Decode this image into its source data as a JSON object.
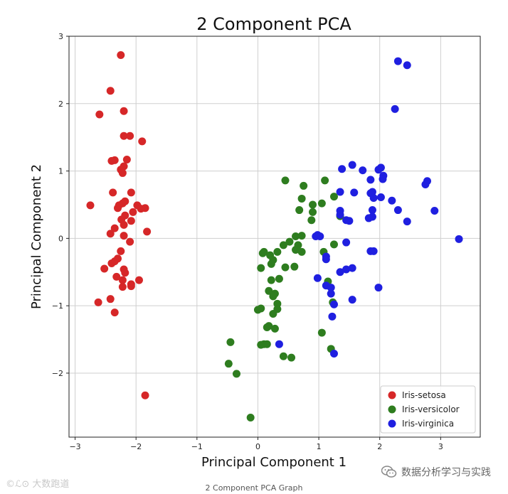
{
  "chart_data": {
    "type": "scatter",
    "title": "2 Component PCA",
    "xlabel": "Principal Component 1",
    "ylabel": "Principal Component 2",
    "xlim": [
      -3.1,
      3.65
    ],
    "ylim": [
      -2.95,
      3.0
    ],
    "xticks": [
      -3,
      -2,
      -1,
      0,
      1,
      2,
      3
    ],
    "xtick_labels": [
      "−3",
      "−2",
      "−1",
      "0",
      "1",
      "2",
      "3"
    ],
    "yticks": [
      -2,
      -1,
      0,
      1,
      2,
      3
    ],
    "ytick_labels": [
      "−2",
      "−1",
      "0",
      "1",
      "2",
      "3"
    ],
    "grid": true,
    "legend_position": "bottom-right",
    "series": [
      {
        "name": "Iris-setosa",
        "color": "#d62728",
        "points": [
          [
            -2.25,
            2.72
          ],
          [
            -2.42,
            2.19
          ],
          [
            -2.6,
            1.84
          ],
          [
            -2.2,
            1.89
          ],
          [
            -2.2,
            1.52
          ],
          [
            -2.1,
            1.52
          ],
          [
            -1.9,
            1.44
          ],
          [
            -2.35,
            1.16
          ],
          [
            -2.4,
            1.15
          ],
          [
            -2.15,
            1.17
          ],
          [
            -2.2,
            1.07
          ],
          [
            -2.25,
            1.02
          ],
          [
            -2.22,
            0.97
          ],
          [
            -2.38,
            0.68
          ],
          [
            -2.08,
            0.68
          ],
          [
            -2.18,
            0.55
          ],
          [
            -2.22,
            0.52
          ],
          [
            -2.28,
            0.49
          ],
          [
            -2.3,
            0.45
          ],
          [
            -1.98,
            0.49
          ],
          [
            -1.92,
            0.44
          ],
          [
            -1.85,
            0.45
          ],
          [
            -2.75,
            0.49
          ],
          [
            -2.05,
            0.39
          ],
          [
            -2.18,
            0.34
          ],
          [
            -2.24,
            0.28
          ],
          [
            -2.35,
            0.15
          ],
          [
            -2.08,
            0.26
          ],
          [
            -2.2,
            0.2
          ],
          [
            -1.82,
            0.1
          ],
          [
            -2.42,
            0.07
          ],
          [
            -2.2,
            0.04
          ],
          [
            -2.1,
            -0.05
          ],
          [
            -2.25,
            -0.19
          ],
          [
            -2.3,
            -0.3
          ],
          [
            -2.35,
            -0.34
          ],
          [
            -2.4,
            -0.37
          ],
          [
            -2.52,
            -0.45
          ],
          [
            -2.2,
            -0.46
          ],
          [
            -2.18,
            -0.51
          ],
          [
            -2.32,
            -0.57
          ],
          [
            -1.95,
            -0.62
          ],
          [
            -2.22,
            -0.62
          ],
          [
            -2.08,
            -0.68
          ],
          [
            -2.08,
            -0.71
          ],
          [
            -2.22,
            -0.72
          ],
          [
            -2.42,
            -0.9
          ],
          [
            -2.62,
            -0.95
          ],
          [
            -2.35,
            -1.1
          ],
          [
            -1.85,
            -2.33
          ]
        ]
      },
      {
        "name": "Iris-versicolor",
        "color": "#2e7d1f",
        "points": [
          [
            0.45,
            0.86
          ],
          [
            1.1,
            0.86
          ],
          [
            0.75,
            0.78
          ],
          [
            1.25,
            0.62
          ],
          [
            0.72,
            0.59
          ],
          [
            0.9,
            0.5
          ],
          [
            1.05,
            0.52
          ],
          [
            0.68,
            0.42
          ],
          [
            0.9,
            0.39
          ],
          [
            1.35,
            0.33
          ],
          [
            0.88,
            0.27
          ],
          [
            0.72,
            0.04
          ],
          [
            0.62,
            0.03
          ],
          [
            0.52,
            -0.05
          ],
          [
            0.66,
            -0.1
          ],
          [
            0.42,
            -0.1
          ],
          [
            0.32,
            -0.2
          ],
          [
            0.2,
            -0.25
          ],
          [
            0.1,
            -0.2
          ],
          [
            0.08,
            -0.22
          ],
          [
            0.72,
            -0.2
          ],
          [
            0.62,
            -0.17
          ],
          [
            0.25,
            -0.32
          ],
          [
            1.08,
            -0.2
          ],
          [
            1.25,
            -0.09
          ],
          [
            0.05,
            -0.44
          ],
          [
            0.22,
            -0.38
          ],
          [
            0.45,
            -0.43
          ],
          [
            0.6,
            -0.42
          ],
          [
            0.35,
            -0.6
          ],
          [
            0.22,
            -0.62
          ],
          [
            1.15,
            -0.64
          ],
          [
            0.18,
            -0.78
          ],
          [
            0.28,
            -0.82
          ],
          [
            0.25,
            -0.86
          ],
          [
            0.32,
            -0.97
          ],
          [
            1.23,
            -0.95
          ],
          [
            0.32,
            -1.05
          ],
          [
            0.0,
            -1.06
          ],
          [
            0.05,
            -1.04
          ],
          [
            0.25,
            -1.12
          ],
          [
            0.18,
            -1.3
          ],
          [
            0.15,
            -1.32
          ],
          [
            0.28,
            -1.34
          ],
          [
            1.05,
            -1.4
          ],
          [
            0.1,
            -1.57
          ],
          [
            0.05,
            -1.58
          ],
          [
            0.15,
            -1.57
          ],
          [
            1.2,
            -1.64
          ],
          [
            -0.45,
            -1.54
          ],
          [
            0.42,
            -1.75
          ],
          [
            0.55,
            -1.77
          ],
          [
            -0.48,
            -1.86
          ],
          [
            -0.35,
            -2.01
          ],
          [
            -0.12,
            -2.66
          ]
        ]
      },
      {
        "name": "Iris-virginica",
        "color": "#1f1fe0",
        "points": [
          [
            2.3,
            2.63
          ],
          [
            2.45,
            2.57
          ],
          [
            2.25,
            1.92
          ],
          [
            1.55,
            1.09
          ],
          [
            1.38,
            1.03
          ],
          [
            1.72,
            1.01
          ],
          [
            2.02,
            1.05
          ],
          [
            1.98,
            1.02
          ],
          [
            2.06,
            0.93
          ],
          [
            2.05,
            0.88
          ],
          [
            1.85,
            0.87
          ],
          [
            2.78,
            0.85
          ],
          [
            2.75,
            0.8
          ],
          [
            1.35,
            0.69
          ],
          [
            1.88,
            0.69
          ],
          [
            1.58,
            0.68
          ],
          [
            1.85,
            0.67
          ],
          [
            1.9,
            0.6
          ],
          [
            2.02,
            0.61
          ],
          [
            2.2,
            0.56
          ],
          [
            1.35,
            0.41
          ],
          [
            1.88,
            0.42
          ],
          [
            2.3,
            0.42
          ],
          [
            2.9,
            0.41
          ],
          [
            1.35,
            0.35
          ],
          [
            1.88,
            0.32
          ],
          [
            1.82,
            0.3
          ],
          [
            1.5,
            0.26
          ],
          [
            1.45,
            0.27
          ],
          [
            2.45,
            0.25
          ],
          [
            0.98,
            0.05
          ],
          [
            1.02,
            0.03
          ],
          [
            0.95,
            0.03
          ],
          [
            3.3,
            -0.01
          ],
          [
            1.45,
            -0.06
          ],
          [
            1.85,
            -0.19
          ],
          [
            1.9,
            -0.19
          ],
          [
            1.12,
            -0.27
          ],
          [
            1.12,
            -0.31
          ],
          [
            1.55,
            -0.44
          ],
          [
            1.45,
            -0.46
          ],
          [
            1.35,
            -0.5
          ],
          [
            0.98,
            -0.59
          ],
          [
            1.12,
            -0.7
          ],
          [
            1.2,
            -0.73
          ],
          [
            1.98,
            -0.73
          ],
          [
            1.2,
            -0.82
          ],
          [
            1.55,
            -0.91
          ],
          [
            1.25,
            -0.98
          ],
          [
            1.22,
            -1.16
          ],
          [
            0.35,
            -1.57
          ],
          [
            1.25,
            -1.71
          ]
        ]
      }
    ]
  },
  "caption": "2 Component PCA Graph",
  "watermark_left": "©ℒ⊙ 大数跑道",
  "watermark_right": "数据分析学习与实践",
  "icons": {
    "watermark_right_icon": "wechat-icon"
  }
}
